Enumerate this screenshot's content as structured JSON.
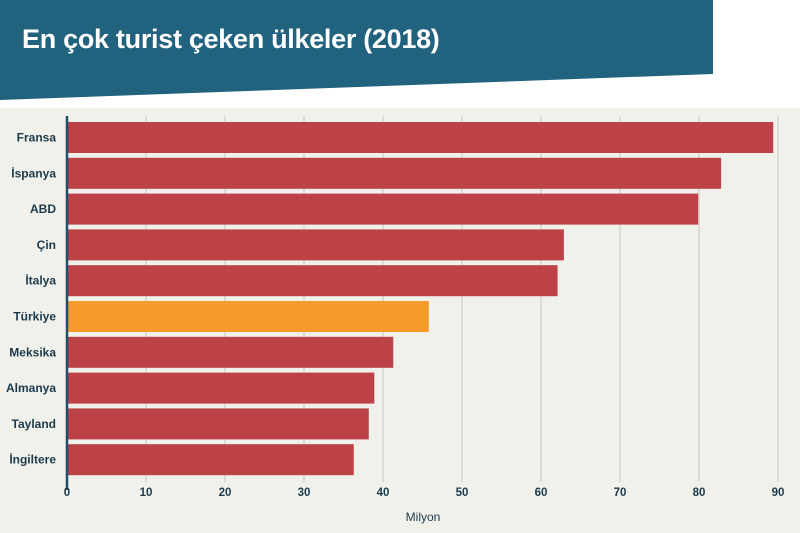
{
  "header": {
    "title": "En çok turist çeken ülkeler (2018)"
  },
  "colors": {
    "header_band": "#21627f",
    "bar_default": "#bd4248",
    "bar_highlight": "#f79a2c",
    "axis": "#1f4f6a",
    "grid": "#c8c8c0",
    "background": "#f1f1ec"
  },
  "chart_data": {
    "type": "bar",
    "orientation": "horizontal",
    "title": "En çok turist çeken ülkeler (2018)",
    "xlabel": "Milyon",
    "ylabel": "",
    "categories": [
      "Fransa",
      "İspanya",
      "ABD",
      "Çin",
      "İtalya",
      "Türkiye",
      "Meksika",
      "Almanya",
      "Tayland",
      "İngiltere"
    ],
    "values": [
      89.4,
      82.8,
      79.9,
      62.9,
      62.1,
      45.8,
      41.3,
      38.9,
      38.2,
      36.3
    ],
    "highlight": "Türkiye",
    "xlim": [
      0,
      90
    ],
    "xticks": [
      0,
      10,
      20,
      30,
      40,
      50,
      60,
      70,
      80,
      90
    ],
    "grid": true,
    "legend": "none"
  }
}
